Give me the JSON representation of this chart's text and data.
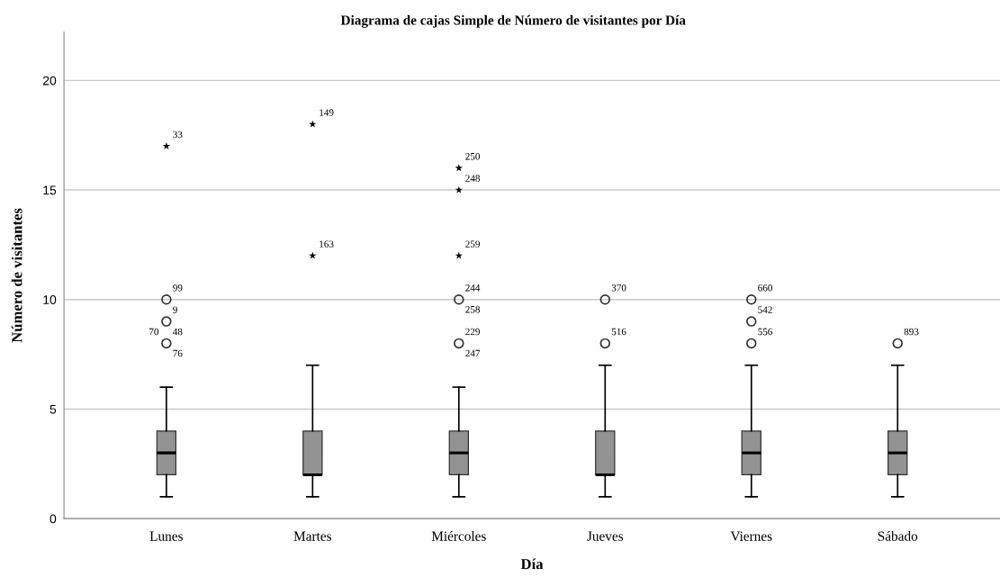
{
  "chart_data": {
    "type": "box",
    "title": "Diagrama de cajas Simple de Número de visitantes por Día",
    "xlabel": "Día",
    "ylabel": "Número de visitantes",
    "categories": [
      "Lunes",
      "Martes",
      "Miércoles",
      "Jueves",
      "Viernes",
      "Sábado"
    ],
    "ylim": [
      0,
      22.2
    ],
    "yticks": [
      0,
      5,
      10,
      15,
      20
    ],
    "grid": "y",
    "series": [
      {
        "type": "box",
        "color": "#939393",
        "boxes": [
          {
            "low": 1,
            "q1": 2,
            "median": 3,
            "q3": 4,
            "high": 6
          },
          {
            "low": 1,
            "q1": 2,
            "median": 2,
            "q3": 4,
            "high": 7
          },
          {
            "low": 1,
            "q1": 2,
            "median": 3,
            "q3": 4,
            "high": 6
          },
          {
            "low": 1,
            "q1": 2,
            "median": 2,
            "q3": 4,
            "high": 7
          },
          {
            "low": 1,
            "q1": 2,
            "median": 3,
            "q3": 4,
            "high": 7
          },
          {
            "low": 1,
            "q1": 2,
            "median": 3,
            "q3": 4,
            "high": 7
          }
        ]
      },
      {
        "type": "scatter",
        "marker": "circle",
        "color": "#333333",
        "x": [
          "Lunes",
          "Lunes",
          "Lunes",
          "Miércoles",
          "Miércoles",
          "Jueves",
          "Jueves",
          "Viernes",
          "Viernes",
          "Viernes",
          "Sábado"
        ],
        "values": [
          8,
          9,
          10,
          8,
          10,
          8,
          10,
          8,
          9,
          10,
          8
        ]
      },
      {
        "type": "scatter",
        "marker": "star",
        "color": "#000000",
        "x": [
          "Lunes",
          "Martes",
          "Martes",
          "Miércoles",
          "Miércoles",
          "Miércoles"
        ],
        "values": [
          17,
          18,
          12,
          16,
          15,
          12
        ]
      }
    ],
    "annotations": [
      {
        "text": "33",
        "x": "Lunes",
        "y": 17
      },
      {
        "text": "99",
        "x": "Lunes",
        "y": 10
      },
      {
        "text": "9",
        "x": "Lunes",
        "y": 9
      },
      {
        "text": "48",
        "x": "Lunes",
        "y": 8
      },
      {
        "text": "76",
        "x": "Lunes",
        "y": 8
      },
      {
        "text": "70",
        "x": "Lunes",
        "y": 8
      },
      {
        "text": "149",
        "x": "Martes",
        "y": 18
      },
      {
        "text": "163",
        "x": "Martes",
        "y": 12
      },
      {
        "text": "250",
        "x": "Miércoles",
        "y": 16
      },
      {
        "text": "248",
        "x": "Miércoles",
        "y": 15
      },
      {
        "text": "259",
        "x": "Miércoles",
        "y": 12
      },
      {
        "text": "244",
        "x": "Miércoles",
        "y": 10
      },
      {
        "text": "258",
        "x": "Miércoles",
        "y": 10
      },
      {
        "text": "229",
        "x": "Miércoles",
        "y": 8
      },
      {
        "text": "247",
        "x": "Miércoles",
        "y": 8
      },
      {
        "text": "370",
        "x": "Jueves",
        "y": 10
      },
      {
        "text": "516",
        "x": "Jueves",
        "y": 8
      },
      {
        "text": "660",
        "x": "Viernes",
        "y": 10
      },
      {
        "text": "542",
        "x": "Viernes",
        "y": 9
      },
      {
        "text": "556",
        "x": "Viernes",
        "y": 8
      },
      {
        "text": "893",
        "x": "Sábado",
        "y": 8
      }
    ]
  }
}
